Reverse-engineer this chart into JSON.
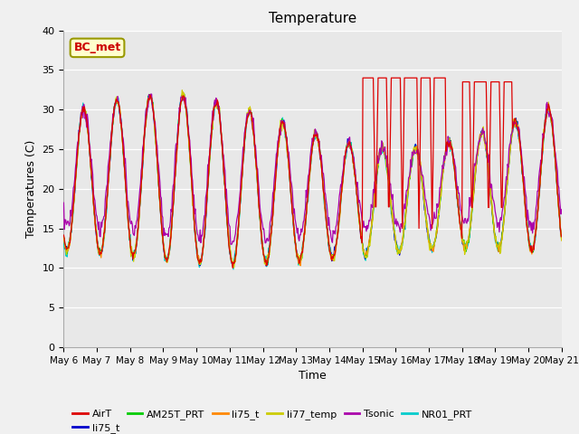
{
  "title": "Temperature",
  "xlabel": "Time",
  "ylabel": "Temperatures (C)",
  "ylim": [
    0,
    40
  ],
  "yticks": [
    0,
    5,
    10,
    15,
    20,
    25,
    30,
    35,
    40
  ],
  "x_tick_labels": [
    "May 6",
    "May 7",
    "May 8",
    "May 9",
    "May 10",
    "May 11",
    "May 12",
    "May 13",
    "May 14",
    "May 15",
    "May 16",
    "May 17",
    "May 18",
    "May 19",
    "May 20",
    "May 21"
  ],
  "annotation_text": "BC_met",
  "annotation_bg": "#ffffcc",
  "annotation_fg": "#cc0000",
  "annotation_edge": "#999900",
  "fig_bg": "#f0f0f0",
  "plot_bg": "#e8e8e8",
  "grid_color": "#ffffff",
  "legend_entries": [
    {
      "label": "AirT",
      "color": "#dd0000"
    },
    {
      "label": "li75_t",
      "color": "#0000cc"
    },
    {
      "label": "AM25T_PRT",
      "color": "#00cc00"
    },
    {
      "label": "li75_t",
      "color": "#ff8800"
    },
    {
      "label": "li77_temp",
      "color": "#cccc00"
    },
    {
      "label": "Tsonic",
      "color": "#aa00aa"
    },
    {
      "label": "NR01_PRT",
      "color": "#00cccc"
    }
  ]
}
